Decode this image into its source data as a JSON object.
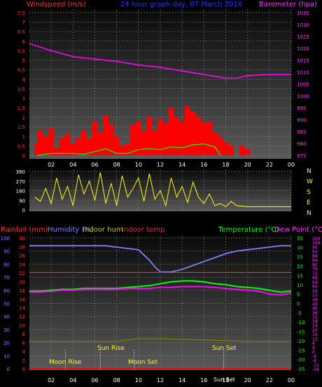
{
  "header": {
    "windspeed_label": "Windspeed (m/s)",
    "title": "24 hour graph day, 07 March 2016",
    "barometer_label": "Barometer (hpa)"
  },
  "bottom_header": {
    "rainfall_label": "Rainfall (mm)",
    "humidity_label": "Humidity (%)",
    "indoor_hum_label": "Indoor hum",
    "indoor_temp_label": "Indoor temp",
    "temperature_label": "Temperature (°C)",
    "dew_point_label": "Dew Point (°C)"
  },
  "compass": [
    "N",
    "W",
    "S",
    "E",
    "N"
  ],
  "events": {
    "moon_rise": "Moon Rise",
    "sun_rise": "Sun Rise",
    "moon_set": "Moon Set",
    "sun_set_upper": "Sun Set",
    "sun_set_lower": "Sun Set"
  },
  "colors": {
    "wind": "#ff0000",
    "gust_line": "#00ff00",
    "barometer": "#ff00ff",
    "direction": "#ffff00",
    "humidity": "#8080ff",
    "temperature": "#00ff00",
    "dew_point": "#ff00ff",
    "rainfall": "#ff0000",
    "indoor_temp": "#c04040",
    "indoor_hum": "#808000"
  },
  "chart_data": [
    {
      "type": "bar",
      "title": "24 hour graph day, 07 March 2016",
      "ylabel": "Windspeed (m/s)",
      "ylim": [
        0,
        7.5
      ],
      "y_ticks": [
        "0",
        "0.5",
        "1",
        "1.5",
        "2",
        "2.5",
        "3",
        "3.5",
        "4",
        "4.5",
        "5",
        "5.5",
        "6",
        "6.5",
        "7",
        "7.5"
      ],
      "y2label": "Barometer (hpa)",
      "y2lim": [
        975,
        1035
      ],
      "y2_ticks": [
        "975",
        "980",
        "985",
        "990",
        "995",
        "1000",
        "1005",
        "1010",
        "1015",
        "1020",
        "1025",
        "1030",
        "1035"
      ],
      "x_ticks": [
        "02",
        "04",
        "06",
        "08",
        "10",
        "12",
        "14",
        "16",
        "18",
        "20",
        "22",
        "00"
      ],
      "xlim": [
        0,
        24
      ],
      "wind_hours": [
        0.7,
        1.0,
        1.5,
        2.0,
        2.5,
        3.0,
        3.5,
        4.0,
        4.5,
        5.0,
        5.5,
        6.0,
        6.5,
        7.0,
        7.5,
        8.0,
        8.5,
        9.0,
        9.5,
        10.0,
        10.5,
        11.0,
        11.5,
        12.0,
        12.5,
        13.0,
        13.5,
        14.0,
        14.5,
        15.0,
        15.5,
        16.0,
        16.5,
        17.0,
        17.5,
        18.0,
        18.5,
        19.0,
        19.5,
        20.0,
        20.5
      ],
      "wind_values": [
        0.6,
        1.3,
        1.0,
        1.4,
        0.4,
        0.9,
        1.1,
        0.6,
        0.9,
        1.3,
        0.9,
        1.8,
        1.2,
        2.1,
        1.6,
        1.0,
        0.5,
        0.6,
        1.6,
        1.8,
        1.3,
        2.0,
        1.3,
        1.9,
        1.7,
        2.5,
        2.0,
        1.8,
        2.6,
        2.3,
        2.0,
        1.7,
        1.8,
        1.2,
        1.0,
        0.7,
        0.5,
        0.0,
        0.5,
        0.3,
        0.0
      ],
      "avg_wind_hours": [
        0.7,
        2,
        4,
        5,
        6,
        7,
        8,
        9,
        10,
        11,
        12,
        13,
        14,
        15,
        16,
        17,
        17.5
      ],
      "avg_wind_values": [
        0,
        0.1,
        0.1,
        0.05,
        0.2,
        0.35,
        0.1,
        0.1,
        0.3,
        0.35,
        0.3,
        0.45,
        0.4,
        0.55,
        0.6,
        0.45,
        0.0
      ],
      "barometer_hours": [
        0,
        2,
        4,
        6,
        8,
        10,
        12,
        14,
        16,
        18,
        19,
        20,
        22,
        24
      ],
      "barometer_values": [
        1022,
        1019,
        1016.5,
        1015.5,
        1014.5,
        1013,
        1012,
        1010.5,
        1009,
        1007.5,
        1007.5,
        1008.5,
        1009,
        1009
      ]
    },
    {
      "type": "scatter",
      "ylabel": "Wind direction",
      "ylim": [
        0,
        360
      ],
      "y_ticks": [
        "0",
        "90",
        "180",
        "270",
        "360"
      ],
      "xlim": [
        0,
        24
      ],
      "x": [
        0.5,
        1,
        1.5,
        2,
        2.5,
        3,
        3.5,
        4,
        4.5,
        5,
        5.5,
        6,
        6.5,
        7,
        7.5,
        8,
        8.5,
        9,
        9.5,
        10,
        10.5,
        11,
        11.5,
        12,
        12.5,
        13,
        13.5,
        14,
        14.5,
        15,
        15.5,
        16,
        16.5,
        17,
        17.5,
        18,
        18.5,
        19,
        20,
        21,
        22,
        23,
        24
      ],
      "y": [
        120,
        80,
        200,
        60,
        300,
        100,
        220,
        40,
        330,
        150,
        270,
        90,
        350,
        60,
        250,
        40,
        320,
        120,
        200,
        300,
        80,
        340,
        100,
        180,
        40,
        300,
        120,
        220,
        70,
        260,
        120,
        60,
        150,
        40,
        60,
        30,
        80,
        40,
        30,
        30,
        30,
        30,
        30
      ]
    },
    {
      "type": "line",
      "x_ticks": [
        "02",
        "04",
        "06",
        "08",
        "10",
        "12",
        "14",
        "16",
        "18",
        "20",
        "22",
        "00"
      ],
      "xlim": [
        0,
        24
      ],
      "left_y_ticks": [
        "0",
        "10",
        "20",
        "30",
        "40",
        "50",
        "60",
        "70",
        "80",
        "90",
        "100"
      ],
      "rain_y_ticks": [
        "0",
        "2",
        "4",
        "6",
        "8",
        "10",
        "12",
        "14",
        "16",
        "18",
        "20",
        "22",
        "24",
        "26",
        "28",
        "30"
      ],
      "temp_y_ticks": [
        "-35",
        "-30",
        "-25",
        "-20",
        "-15",
        "-10",
        "-5",
        "0",
        "5",
        "10",
        "15",
        "20",
        "25",
        "30",
        "35"
      ],
      "dew_y_ticks": [
        "-16",
        "-12",
        "-8",
        "-4",
        "0",
        "4",
        "8",
        "12",
        "16",
        "20",
        "24",
        "28",
        "32",
        "36",
        "40",
        "44",
        "48",
        "52",
        "56",
        "60",
        "64",
        "68",
        "72",
        "76",
        "80",
        "84",
        "88",
        "92",
        "96",
        "100",
        "104"
      ],
      "series": [
        {
          "name": "Humidity (%)",
          "ylim": [
            0,
            100
          ],
          "x": [
            0,
            1,
            2,
            3,
            4,
            5,
            6,
            7,
            8,
            9,
            10,
            11,
            11.5,
            12,
            13,
            14,
            15,
            16,
            17,
            18,
            19,
            20,
            21,
            22,
            23,
            24
          ],
          "values": [
            94,
            94,
            94,
            94,
            94,
            94,
            94,
            94,
            93,
            92,
            91,
            83,
            78,
            74,
            74,
            76,
            79,
            82,
            85,
            88,
            90,
            91,
            92,
            93,
            94,
            94
          ]
        },
        {
          "name": "Temperature (°C)",
          "ylim": [
            -35,
            35
          ],
          "x": [
            0,
            1,
            2,
            3,
            4,
            5,
            6,
            7,
            8,
            9,
            10,
            11,
            12,
            13,
            14,
            15,
            16,
            17,
            18,
            19,
            20,
            21,
            22,
            23,
            24
          ],
          "values": [
            6.5,
            6.5,
            7,
            7.5,
            7.5,
            8,
            8,
            8,
            8,
            8.5,
            9,
            9.5,
            10.5,
            11.5,
            12,
            12,
            11.5,
            10.5,
            10,
            9,
            8.5,
            8,
            7,
            6,
            6.5
          ]
        },
        {
          "name": "Dew Point (°C)",
          "ylim": [
            -35,
            35
          ],
          "x": [
            0,
            1,
            2,
            3,
            4,
            5,
            6,
            7,
            8,
            9,
            10,
            11,
            12,
            13,
            14,
            15,
            16,
            17,
            18,
            19,
            20,
            21,
            22,
            23,
            24
          ],
          "values": [
            6,
            6,
            6.5,
            7,
            7,
            7.5,
            7.5,
            7.5,
            7.5,
            8,
            8,
            8,
            8.5,
            8.5,
            9,
            9,
            9,
            8.5,
            8,
            7.5,
            7,
            6.5,
            5,
            4.5,
            5.5
          ]
        },
        {
          "name": "Indoor temp",
          "ylim": [
            -35,
            35
          ],
          "x": [
            0,
            4,
            8,
            12,
            16,
            20,
            24
          ],
          "values": [
            16.5,
            16.5,
            16.5,
            16.5,
            16.5,
            16.5,
            16.5
          ]
        },
        {
          "name": "Indoor hum",
          "ylim": [
            0,
            100
          ],
          "x": [
            0,
            4,
            8,
            10,
            12,
            16,
            20,
            24
          ],
          "values": [
            21,
            21,
            21,
            23,
            23,
            22,
            21,
            21
          ]
        },
        {
          "name": "Rainfall (mm)",
          "ylim": [
            0,
            30
          ],
          "x": [
            0,
            24
          ],
          "values": [
            0,
            0
          ]
        }
      ],
      "markers": [
        {
          "label": "Moon Rise",
          "hour": 3.3
        },
        {
          "label": "Sun Rise",
          "hour": 6.5
        },
        {
          "label": "Moon Set",
          "hour": 9.6
        },
        {
          "label": "Sun Set",
          "hour": 17.8
        }
      ]
    }
  ]
}
